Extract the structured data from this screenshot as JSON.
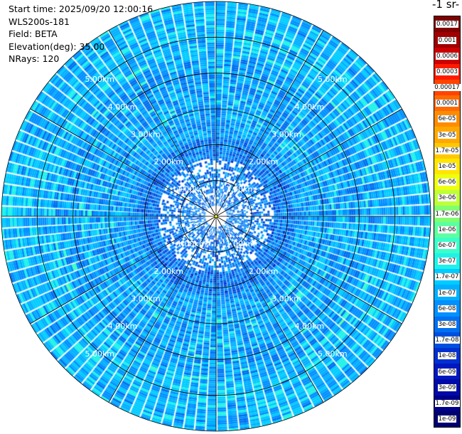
{
  "header": {
    "start_time": "Start time: 2025/09/20 12:00:16",
    "instrument": "WLS200s-181",
    "field": "Field: BETA",
    "elevation": "Elevation(deg): 35.00",
    "nrays": "NRays: 120"
  },
  "colorbar": {
    "title_fragment": "-1 sr-",
    "labels": [
      "0.0017",
      "0.001",
      "0.0006",
      "0.0003",
      "0.00017",
      "0.0001",
      "6e-05",
      "3e-05",
      "1.7e-05",
      "1e-05",
      "6e-06",
      "3e-06",
      "1.7e-06",
      "1e-06",
      "6e-07",
      "3e-07",
      "1.7e-07",
      "1e-07",
      "6e-08",
      "3e-08",
      "1.7e-08",
      "1e-08",
      "6e-09",
      "3e-09",
      "1.7e-09",
      "1e-09"
    ],
    "colors": [
      "#7f0000",
      "#a00000",
      "#cc0000",
      "#ff1a00",
      "#ff4400",
      "#ff6a00",
      "#ff8c00",
      "#ffa800",
      "#ffc800",
      "#ffe600",
      "#eeff10",
      "#bfff3a",
      "#80ff70",
      "#5cffa0",
      "#3affc8",
      "#1ef2e8",
      "#00ccff",
      "#00b0ff",
      "#0090ff",
      "#0070f0",
      "#0050e0",
      "#0030d0",
      "#0018c0",
      "#000aa8",
      "#000088",
      "#000070"
    ]
  },
  "chart_data": {
    "type": "ppi-polar",
    "field": "BETA",
    "elevation_deg": 35.0,
    "n_rays": 120,
    "range_rings_km": [
      1,
      2,
      3,
      4,
      5
    ],
    "ring_labels": [
      "1.00km",
      "2.00km",
      "3.00km",
      "4.00km",
      "5.00km"
    ],
    "max_range_km": 6,
    "color_scale": "log",
    "value_range": [
      1e-09,
      0.0017
    ],
    "dominant_value_bands": [
      {
        "range_km": [
          0,
          1.3
        ],
        "typical_value": 3e-08
      },
      {
        "range_km": [
          1.3,
          2.2
        ],
        "typical_value": 3e-08
      },
      {
        "range_km": [
          2.2,
          4.5
        ],
        "typical_value": 6e-08
      },
      {
        "range_km": [
          4.5,
          6
        ],
        "typical_value": 1e-07
      }
    ]
  }
}
